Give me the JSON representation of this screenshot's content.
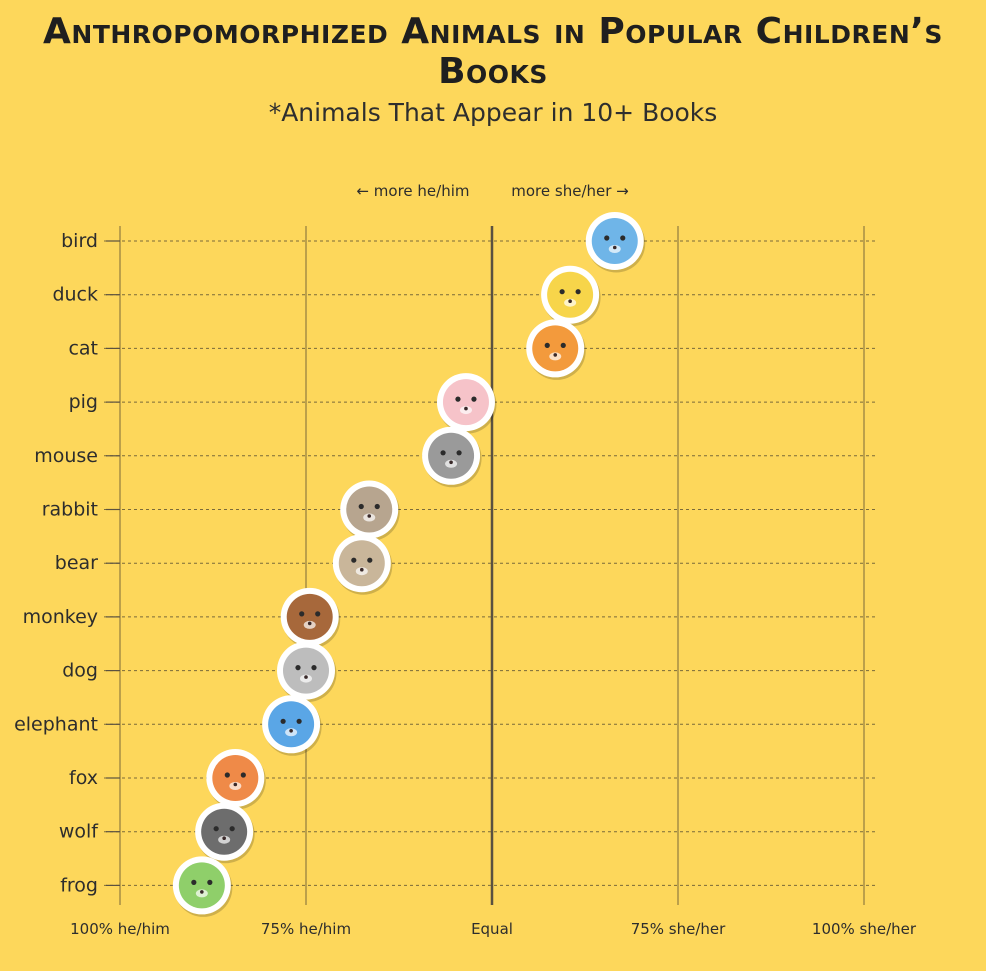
{
  "title": "Anthropomorphized Animals in Popular Children’s Books",
  "subtitle": "*Animals That Appear in 10+ Books",
  "direction_labels": {
    "left": "← more he/him",
    "right": "more she/her →"
  },
  "chart_data": {
    "type": "scatter",
    "title": "Anthropomorphized Animals in Popular Children’s Books",
    "subtitle": "*Animals That Appear in 10+ Books",
    "xlim": [
      -100,
      100
    ],
    "x_ticks": [
      {
        "value": -100,
        "label": "100% he/him"
      },
      {
        "value": -50,
        "label": "75% he/him"
      },
      {
        "value": 0,
        "label": "Equal"
      },
      {
        "value": 50,
        "label": "75% she/her"
      },
      {
        "value": 100,
        "label": "100% she/her"
      }
    ],
    "categories": [
      "bird",
      "duck",
      "cat",
      "pig",
      "mouse",
      "rabbit",
      "bear",
      "monkey",
      "dog",
      "elephant",
      "fox",
      "wolf",
      "frog"
    ],
    "values": [
      33,
      21,
      17,
      -7,
      -11,
      -33,
      -35,
      -49,
      -50,
      -54,
      -69,
      -72,
      -78
    ],
    "grid": true,
    "colors": {
      "bird": "#6fb5e8",
      "duck": "#f7d54a",
      "cat": "#f39a3c",
      "pig": "#f6c3c9",
      "mouse": "#9a9a9a",
      "rabbit": "#b7a58f",
      "bear": "#c9b69a",
      "monkey": "#a7683b",
      "dog": "#bdbdbd",
      "elephant": "#5aa6e6",
      "fox": "#ef8a48",
      "wolf": "#6d6d6d",
      "frog": "#8fcf6a"
    }
  }
}
